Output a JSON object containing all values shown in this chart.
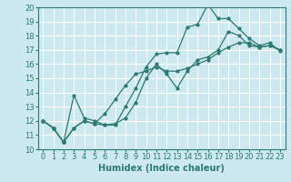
{
  "background_color": "#cce8f0",
  "grid_color": "#ffffff",
  "line_color": "#2d7a6e",
  "marker_color": "#2d7a6e",
  "xlabel": "Humidex (Indice chaleur)",
  "xlim": [
    -0.5,
    23.5
  ],
  "ylim": [
    10,
    20
  ],
  "xticks": [
    0,
    1,
    2,
    3,
    4,
    5,
    6,
    7,
    8,
    9,
    10,
    11,
    12,
    13,
    14,
    15,
    16,
    17,
    18,
    19,
    20,
    21,
    22,
    23
  ],
  "yticks": [
    10,
    11,
    12,
    13,
    14,
    15,
    16,
    17,
    18,
    19,
    20
  ],
  "series1_x": [
    0,
    1,
    2,
    3,
    4,
    5,
    6,
    7,
    8,
    9,
    10,
    11,
    12,
    13,
    14,
    15,
    16,
    17,
    18,
    19,
    20,
    21,
    22,
    23
  ],
  "series1_y": [
    12.0,
    11.5,
    10.5,
    11.5,
    12.0,
    11.8,
    11.7,
    11.7,
    13.0,
    14.3,
    15.8,
    16.7,
    16.8,
    16.8,
    18.6,
    18.8,
    20.2,
    19.2,
    19.2,
    18.5,
    17.8,
    17.3,
    17.5,
    16.9
  ],
  "series2_x": [
    0,
    1,
    2,
    3,
    4,
    5,
    6,
    7,
    8,
    9,
    10,
    11,
    12,
    13,
    14,
    15,
    16,
    17,
    18,
    19,
    20,
    21,
    22,
    23
  ],
  "series2_y": [
    12.0,
    11.5,
    10.5,
    13.8,
    12.2,
    12.0,
    11.7,
    11.8,
    12.2,
    13.3,
    15.0,
    16.0,
    15.3,
    14.3,
    15.5,
    16.3,
    16.5,
    17.0,
    18.3,
    18.0,
    17.3,
    17.2,
    17.3,
    17.0
  ],
  "series3_x": [
    0,
    1,
    2,
    3,
    4,
    5,
    6,
    7,
    8,
    9,
    10,
    11,
    12,
    13,
    14,
    15,
    16,
    17,
    18,
    19,
    20,
    21,
    22,
    23
  ],
  "series3_y": [
    12.0,
    11.5,
    10.5,
    11.5,
    12.0,
    11.8,
    12.5,
    13.5,
    14.5,
    15.3,
    15.5,
    15.8,
    15.5,
    15.5,
    15.7,
    16.0,
    16.3,
    16.8,
    17.2,
    17.5,
    17.5,
    17.2,
    17.3,
    17.0
  ],
  "font_size": 6,
  "xlabel_fontsize": 7
}
